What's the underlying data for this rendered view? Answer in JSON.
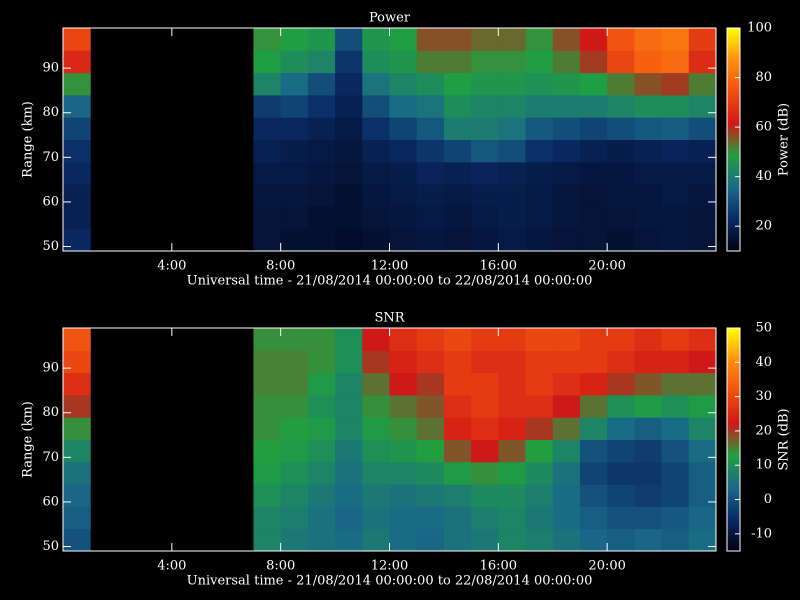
{
  "chart_data": [
    {
      "type": "heatmap",
      "title": "Power",
      "x_label": "Universal time - 21/08/2014 00:00:00 to 22/08/2014 00:00:00",
      "y_label": "Range (km)",
      "colorbar_label": "Power (dB)",
      "xlim": [
        0,
        24
      ],
      "ylim": [
        49,
        99
      ],
      "xticks": [
        {
          "value": 4,
          "label": "4:00"
        },
        {
          "value": 8,
          "label": "8:00"
        },
        {
          "value": 12,
          "label": "12:00"
        },
        {
          "value": 16,
          "label": "16:00"
        },
        {
          "value": 20,
          "label": "20:00"
        }
      ],
      "yticks": [
        50,
        60,
        70,
        80,
        90
      ],
      "zlim": [
        10,
        100
      ],
      "zticks": [
        20,
        40,
        60,
        80,
        100
      ],
      "colormap": [
        "#000010",
        "#0a2a66",
        "#1a6a88",
        "#20a040",
        "#d01818",
        "#f05010",
        "#ff9010",
        "#ffff00"
      ],
      "xbins": [
        0,
        1,
        2,
        3,
        4,
        5,
        6,
        7,
        8,
        9,
        10,
        11,
        12,
        13,
        14,
        15,
        16,
        17,
        18,
        19,
        20,
        21,
        22,
        23,
        24
      ],
      "ybins": [
        49,
        54,
        59,
        64,
        69,
        74,
        79,
        84,
        89,
        94,
        99
      ],
      "z": [
        [
          22,
          null,
          null,
          null,
          null,
          null,
          null,
          16,
          15,
          15,
          14,
          15,
          16,
          17,
          16,
          17,
          18,
          17,
          16,
          16,
          15,
          16,
          17,
          16
        ],
        [
          20,
          null,
          null,
          null,
          null,
          null,
          null,
          16,
          16,
          15,
          15,
          16,
          17,
          18,
          17,
          18,
          19,
          18,
          17,
          16,
          16,
          17,
          17,
          16
        ],
        [
          20,
          null,
          null,
          null,
          null,
          null,
          null,
          17,
          17,
          16,
          15,
          17,
          18,
          19,
          18,
          19,
          19,
          18,
          17,
          16,
          17,
          17,
          18,
          17
        ],
        [
          22,
          null,
          null,
          null,
          null,
          null,
          null,
          18,
          18,
          17,
          16,
          18,
          19,
          21,
          20,
          21,
          20,
          19,
          18,
          17,
          17,
          18,
          18,
          18
        ],
        [
          24,
          null,
          null,
          null,
          null,
          null,
          null,
          20,
          19,
          18,
          17,
          20,
          22,
          25,
          28,
          32,
          30,
          24,
          22,
          20,
          19,
          20,
          21,
          20
        ],
        [
          28,
          null,
          null,
          null,
          null,
          null,
          null,
          22,
          22,
          20,
          18,
          24,
          28,
          32,
          40,
          40,
          38,
          32,
          30,
          28,
          30,
          32,
          33,
          30
        ],
        [
          35,
          null,
          null,
          null,
          null,
          null,
          null,
          26,
          28,
          24,
          20,
          30,
          36,
          38,
          44,
          42,
          42,
          40,
          40,
          40,
          42,
          44,
          44,
          42
        ],
        [
          50,
          null,
          null,
          null,
          null,
          null,
          null,
          42,
          36,
          30,
          22,
          38,
          42,
          44,
          48,
          46,
          46,
          45,
          46,
          48,
          52,
          56,
          58,
          52
        ],
        [
          65,
          null,
          null,
          null,
          null,
          null,
          null,
          48,
          44,
          42,
          25,
          44,
          46,
          52,
          52,
          50,
          50,
          48,
          52,
          58,
          72,
          78,
          80,
          66
        ],
        [
          72,
          null,
          null,
          null,
          null,
          null,
          null,
          50,
          48,
          46,
          30,
          46,
          48,
          56,
          56,
          54,
          54,
          50,
          56,
          62,
          75,
          80,
          82,
          70
        ]
      ]
    },
    {
      "type": "heatmap",
      "title": "SNR",
      "x_label": "Universal time - 21/08/2014 00:00:00 to 22/08/2014 00:00:00",
      "y_label": "Range (km)",
      "colorbar_label": "SNR (dB)",
      "xlim": [
        0,
        24
      ],
      "ylim": [
        49,
        99
      ],
      "xticks": [
        {
          "value": 4,
          "label": "4:00"
        },
        {
          "value": 8,
          "label": "8:00"
        },
        {
          "value": 12,
          "label": "12:00"
        },
        {
          "value": 16,
          "label": "16:00"
        },
        {
          "value": 20,
          "label": "20:00"
        }
      ],
      "yticks": [
        50,
        60,
        70,
        80,
        90
      ],
      "zlim": [
        -15,
        50
      ],
      "zticks": [
        -10,
        0,
        10,
        20,
        30,
        40,
        50
      ],
      "colormap": [
        "#000010",
        "#0a2a66",
        "#1a6a88",
        "#20a040",
        "#d01818",
        "#f05010",
        "#ff9010",
        "#ffff00"
      ],
      "xbins": [
        0,
        1,
        2,
        3,
        4,
        5,
        6,
        7,
        8,
        9,
        10,
        11,
        12,
        13,
        14,
        15,
        16,
        17,
        18,
        19,
        20,
        21,
        22,
        23,
        24
      ],
      "ybins": [
        49,
        54,
        59,
        64,
        69,
        74,
        79,
        84,
        89,
        94,
        99
      ],
      "z": [
        [
          0,
          null,
          null,
          null,
          null,
          null,
          null,
          8,
          6,
          5,
          4,
          6,
          4,
          3,
          5,
          6,
          8,
          7,
          5,
          3,
          2,
          3,
          2,
          4
        ],
        [
          2,
          null,
          null,
          null,
          null,
          null,
          null,
          8,
          7,
          5,
          3,
          5,
          4,
          4,
          5,
          7,
          8,
          6,
          4,
          2,
          0,
          0,
          1,
          3
        ],
        [
          3,
          null,
          null,
          null,
          null,
          null,
          null,
          10,
          8,
          6,
          4,
          6,
          5,
          6,
          7,
          9,
          9,
          7,
          4,
          0,
          -2,
          -3,
          -2,
          2
        ],
        [
          5,
          null,
          null,
          null,
          null,
          null,
          null,
          12,
          10,
          8,
          5,
          8,
          8,
          9,
          12,
          14,
          12,
          9,
          5,
          -2,
          -4,
          -4,
          -2,
          2
        ],
        [
          8,
          null,
          null,
          null,
          null,
          null,
          null,
          13,
          12,
          10,
          6,
          10,
          11,
          13,
          18,
          22,
          18,
          13,
          8,
          0,
          -2,
          -3,
          0,
          4
        ],
        [
          14,
          null,
          null,
          null,
          null,
          null,
          null,
          14,
          13,
          12,
          8,
          12,
          14,
          16,
          24,
          26,
          24,
          20,
          16,
          8,
          4,
          2,
          4,
          8
        ],
        [
          20,
          null,
          null,
          null,
          null,
          null,
          null,
          14,
          14,
          10,
          8,
          14,
          16,
          18,
          26,
          28,
          26,
          26,
          22,
          16,
          10,
          12,
          10,
          12
        ],
        [
          26,
          null,
          null,
          null,
          null,
          null,
          null,
          15,
          15,
          12,
          8,
          16,
          22,
          20,
          28,
          28,
          26,
          28,
          26,
          24,
          20,
          18,
          16,
          16
        ],
        [
          30,
          null,
          null,
          null,
          null,
          null,
          null,
          15,
          15,
          14,
          10,
          20,
          24,
          26,
          28,
          26,
          26,
          28,
          28,
          28,
          26,
          24,
          24,
          22
        ],
        [
          32,
          null,
          null,
          null,
          null,
          null,
          null,
          14,
          14,
          14,
          10,
          22,
          26,
          28,
          30,
          28,
          28,
          30,
          30,
          28,
          28,
          26,
          28,
          26
        ]
      ]
    }
  ]
}
